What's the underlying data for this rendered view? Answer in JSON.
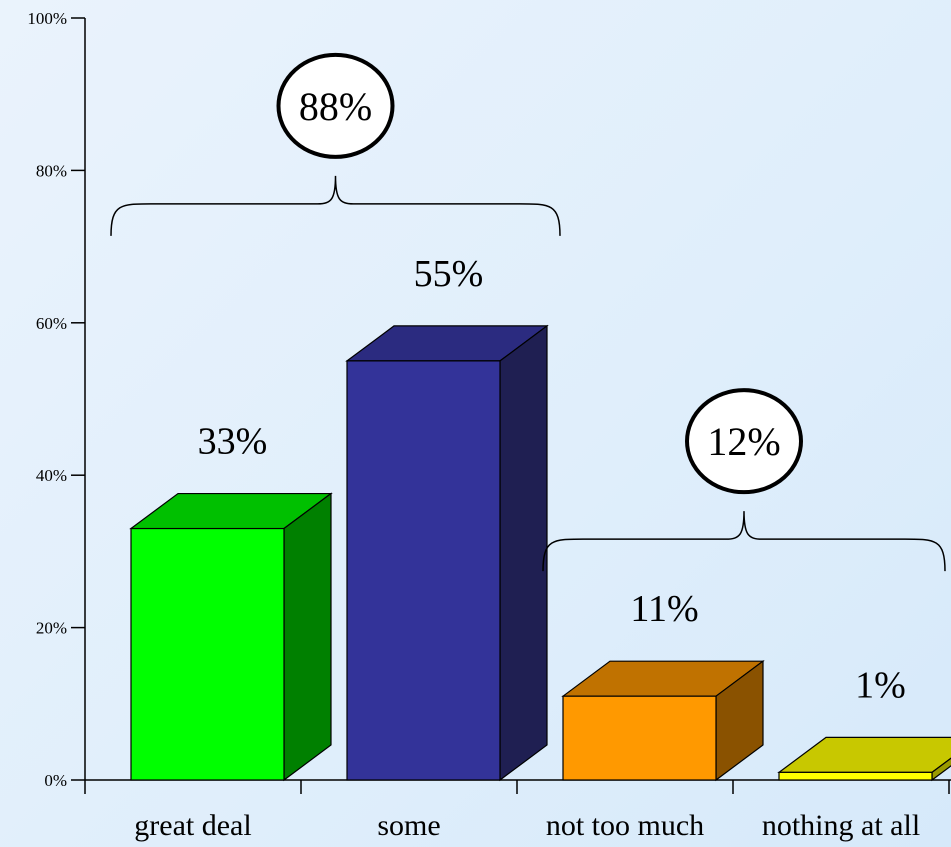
{
  "chart_data": {
    "type": "bar",
    "categories": [
      "great deal",
      "some",
      "not too much",
      "nothing at all"
    ],
    "values": [
      33,
      55,
      11,
      1
    ],
    "value_labels": [
      "33%",
      "55%",
      "11%",
      "1%"
    ],
    "ylim": [
      0,
      100
    ],
    "y_ticks": [
      {
        "value": 0,
        "label": "0%"
      },
      {
        "value": 20,
        "label": "20%"
      },
      {
        "value": 40,
        "label": "40%"
      },
      {
        "value": 60,
        "label": "60%"
      },
      {
        "value": 80,
        "label": "80%"
      },
      {
        "value": 100,
        "label": "100%"
      }
    ],
    "bar_colors": [
      {
        "front": "#00ff00",
        "side": "#008000",
        "top": "#00c000"
      },
      {
        "front": "#333399",
        "side": "#1f1f52",
        "top": "#2b2b80"
      },
      {
        "front": "#ff9900",
        "side": "#8a5200",
        "top": "#c07200"
      },
      {
        "front": "#ffff00",
        "side": "#9a9a00",
        "top": "#c8c800"
      }
    ],
    "groupings": [
      {
        "label": "88%",
        "from": 0,
        "to": 1
      },
      {
        "label": "12%",
        "from": 2,
        "to": 3
      }
    ],
    "grid": false,
    "style": "3d-bar"
  }
}
